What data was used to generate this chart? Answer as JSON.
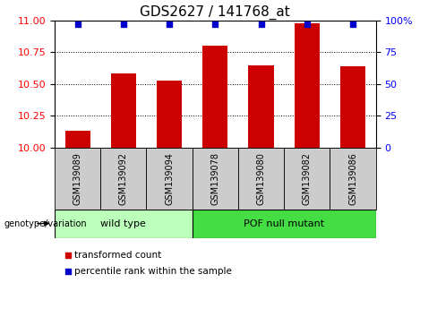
{
  "title": "GDS2627 / 141768_at",
  "samples": [
    "GSM139089",
    "GSM139092",
    "GSM139094",
    "GSM139078",
    "GSM139080",
    "GSM139082",
    "GSM139086"
  ],
  "bar_values": [
    10.13,
    10.58,
    10.53,
    10.8,
    10.65,
    10.98,
    10.64
  ],
  "percentile_y": [
    10.97,
    10.97,
    10.97,
    10.97,
    10.97,
    10.97,
    10.97
  ],
  "bar_color": "#cc0000",
  "dot_color": "#0000cc",
  "ylim": [
    10.0,
    11.0
  ],
  "yticks_left": [
    10.0,
    10.25,
    10.5,
    10.75,
    11.0
  ],
  "yticks_right": [
    0,
    25,
    50,
    75,
    100
  ],
  "groups": [
    {
      "label": "wild type",
      "start": 0,
      "end": 3,
      "color": "#bbffbb"
    },
    {
      "label": "POF null mutant",
      "start": 3,
      "end": 7,
      "color": "#44dd44"
    }
  ],
  "genotype_label": "genotype/variation",
  "legend_items": [
    {
      "color": "#cc0000",
      "label": "transformed count"
    },
    {
      "color": "#0000cc",
      "label": "percentile rank within the sample"
    }
  ],
  "bar_width": 0.55,
  "title_fontsize": 11,
  "sample_fontsize": 7,
  "tick_fontsize": 8,
  "group_label_color_wt": "#bbffbb",
  "group_label_color_pof": "#44dd44",
  "gray_box_color": "#cccccc"
}
